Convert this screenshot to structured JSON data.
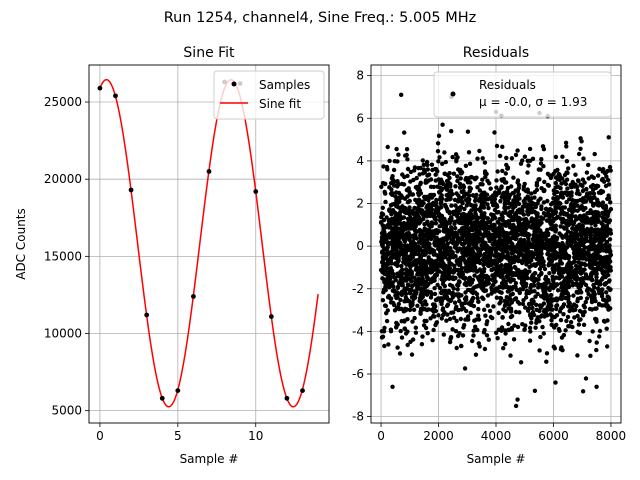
{
  "figure_title": "Run 1254, channel4, Sine Freq.: 5.005 MHz",
  "chart_data": [
    {
      "type": "scatter+line",
      "title": "Sine Fit",
      "xlabel": "Sample #",
      "ylabel": "ADC Counts",
      "xlim": [
        -0.7,
        14.7
      ],
      "ylim": [
        4200,
        27400
      ],
      "xticks": [
        0,
        5,
        10
      ],
      "yticks": [
        5000,
        10000,
        15000,
        20000,
        25000
      ],
      "grid": true,
      "legend": {
        "placement": "top-right",
        "entries": [
          "Samples",
          "Sine fit"
        ]
      },
      "samples": {
        "name": "Samples",
        "color": "#000000",
        "x": [
          0,
          1,
          2,
          3,
          4,
          5,
          6,
          7,
          8,
          9,
          10,
          11,
          12,
          13
        ],
        "y": [
          25900,
          25400,
          19300,
          11200,
          5800,
          6300,
          12400,
          20500,
          26300,
          26200,
          19200,
          11100,
          5800,
          6300
        ]
      },
      "fit": {
        "name": "Sine fit",
        "color": "#ff0000",
        "x_range": [
          0,
          14
        ],
        "amplitude": 10600,
        "offset": 15850,
        "period_samples": 7.99,
        "peak_at": 0.42
      }
    },
    {
      "type": "scatter",
      "title": "Residuals",
      "xlabel": "Sample #",
      "ylabel": "",
      "xlim": [
        -350,
        8350
      ],
      "ylim": [
        -8.3,
        8.5
      ],
      "xticks": [
        0,
        2000,
        4000,
        6000,
        8000
      ],
      "yticks": [
        -8,
        -6,
        -4,
        -2,
        0,
        2,
        4,
        6,
        8
      ],
      "grid": true,
      "legend": {
        "placement": "top-right",
        "entries": [
          "Residuals",
          "μ = -0.0, σ = 1.93"
        ]
      },
      "series": {
        "name": "Residuals",
        "color": "#000000",
        "count": 8000,
        "x_range": [
          0,
          7999
        ],
        "mean": -0.0,
        "sigma": 1.93,
        "y_clip": [
          -7.5,
          7.1
        ],
        "highlighted_points": [
          {
            "x": 700,
            "y": 7.1
          },
          {
            "x": 2450,
            "y": 7.0
          },
          {
            "x": 4700,
            "y": -7.5
          },
          {
            "x": 4750,
            "y": -7.2
          },
          {
            "x": 400,
            "y": -6.6
          },
          {
            "x": 5800,
            "y": 6.1
          },
          {
            "x": 4000,
            "y": 6.3
          },
          {
            "x": 7500,
            "y": -6.6
          }
        ]
      }
    }
  ]
}
